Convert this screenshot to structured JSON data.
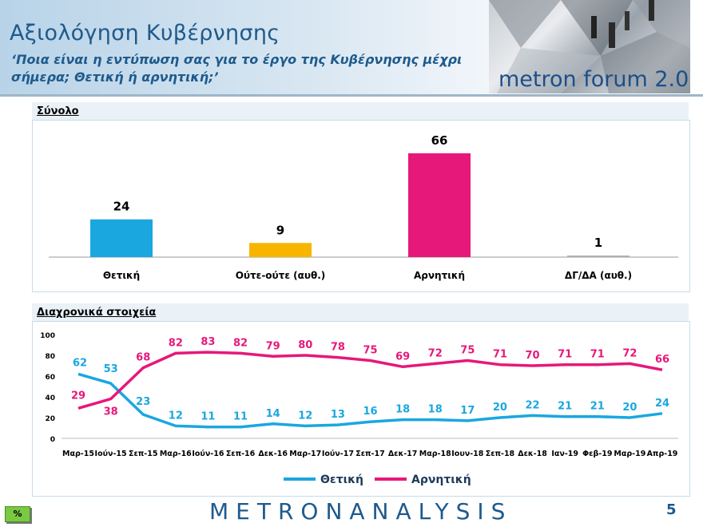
{
  "header": {
    "title": "Αξιολόγηση Κυβέρνησης",
    "subtitle": "‘Ποια είναι η εντύπωση σας για το έργο της Κυβέρνησης μέχρι σήμερα; Θετική ή αρνητική;’",
    "logo_text": "metron forum 2.0"
  },
  "chart_data": [
    {
      "type": "bar",
      "section_label": "Σύνολο",
      "categories": [
        "Θετική",
        "Ούτε-ούτε (αυθ.)",
        "Αρνητική",
        "ΔΓ/ΔΑ (αυθ.)"
      ],
      "values": [
        24,
        9,
        66,
        1
      ],
      "labels": [
        "24",
        "9",
        "66",
        "1"
      ],
      "colors": [
        "#1aa7e0",
        "#f7b500",
        "#e6187a",
        "#b0b0b0"
      ]
    },
    {
      "type": "line",
      "section_label": "Διαχρονικά στοιχεία",
      "x": [
        "Μαρ-15",
        "Ιούν-15",
        "Σεπ-15",
        "Μαρ-16",
        "Ιούν-16",
        "Σεπ-16",
        "Δεκ-16",
        "Μαρ-17",
        "Ιούν-17",
        "Σεπ-17",
        "Δεκ-17",
        "Μαρ-18",
        "Ιουν-18",
        "Σεπ-18",
        "Δεκ-18",
        "Ιαν-19",
        "Φεβ-19",
        "Μαρ-19",
        "Απρ-19"
      ],
      "ylim": [
        0,
        100
      ],
      "yticks": [
        "0",
        "20",
        "40",
        "60",
        "80",
        "100"
      ],
      "grid": false,
      "legend_position": "bottom-center",
      "series": [
        {
          "name": "Θετική",
          "color": "#1aa7e0",
          "values": [
            62,
            53,
            23,
            12,
            11,
            11,
            14,
            12,
            13,
            16,
            18,
            18,
            17,
            20,
            22,
            21,
            21,
            20,
            24
          ]
        },
        {
          "name": "Αρνητική",
          "color": "#e6187a",
          "values": [
            29,
            38,
            68,
            82,
            83,
            82,
            79,
            80,
            78,
            75,
            69,
            72,
            75,
            71,
            70,
            71,
            71,
            72,
            66
          ]
        }
      ]
    }
  ],
  "footer": {
    "logo": "METRONANALYSIS",
    "page_number": "5",
    "badge": "%"
  }
}
